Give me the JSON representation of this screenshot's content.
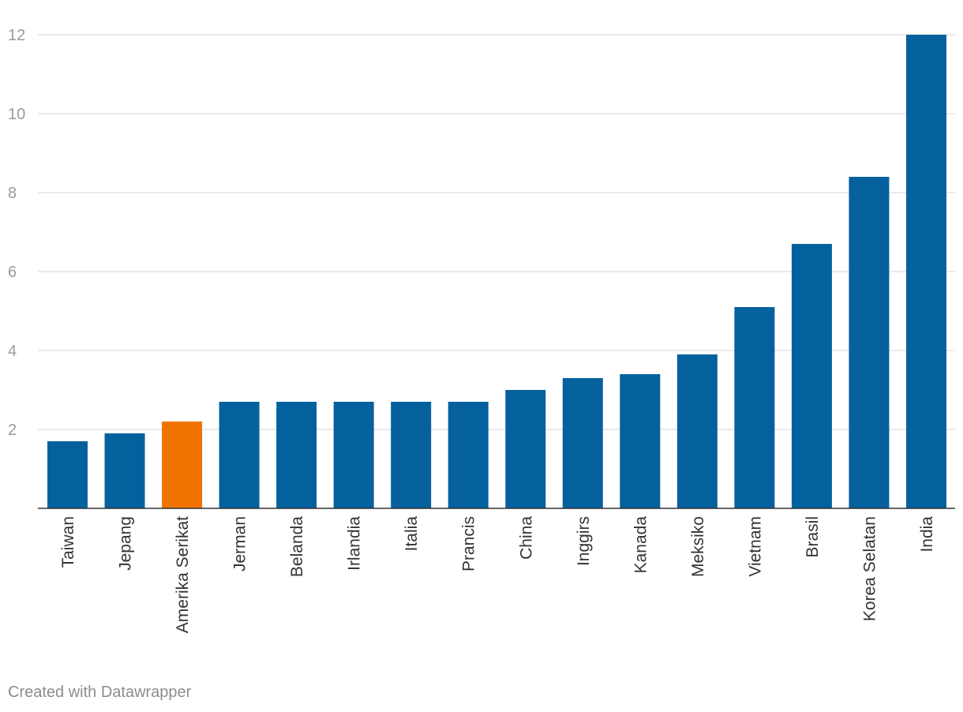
{
  "chart_data": {
    "type": "bar",
    "categories": [
      "Taiwan",
      "Jepang",
      "Amerika Serikat",
      "Jerman",
      "Belanda",
      "Irlandia",
      "Italia",
      "Prancis",
      "China",
      "Inggirs",
      "Kanada",
      "Meksiko",
      "Vietnam",
      "Brasil",
      "Korea Selatan",
      "India"
    ],
    "values": [
      1.7,
      1.9,
      2.2,
      2.7,
      2.7,
      2.7,
      2.7,
      2.7,
      3.0,
      3.3,
      3.4,
      3.9,
      5.1,
      6.7,
      8.4,
      12.0
    ],
    "highlight": "Amerika Serikat",
    "colors": {
      "default": "#05619e",
      "highlight": "#f07300"
    },
    "yticks": [
      2,
      4,
      6,
      8,
      10,
      12
    ],
    "ylim": [
      0,
      12
    ],
    "grid": true,
    "title": "",
    "xlabel": "",
    "ylabel": ""
  },
  "footer": {
    "credit": "Created with Datawrapper"
  }
}
